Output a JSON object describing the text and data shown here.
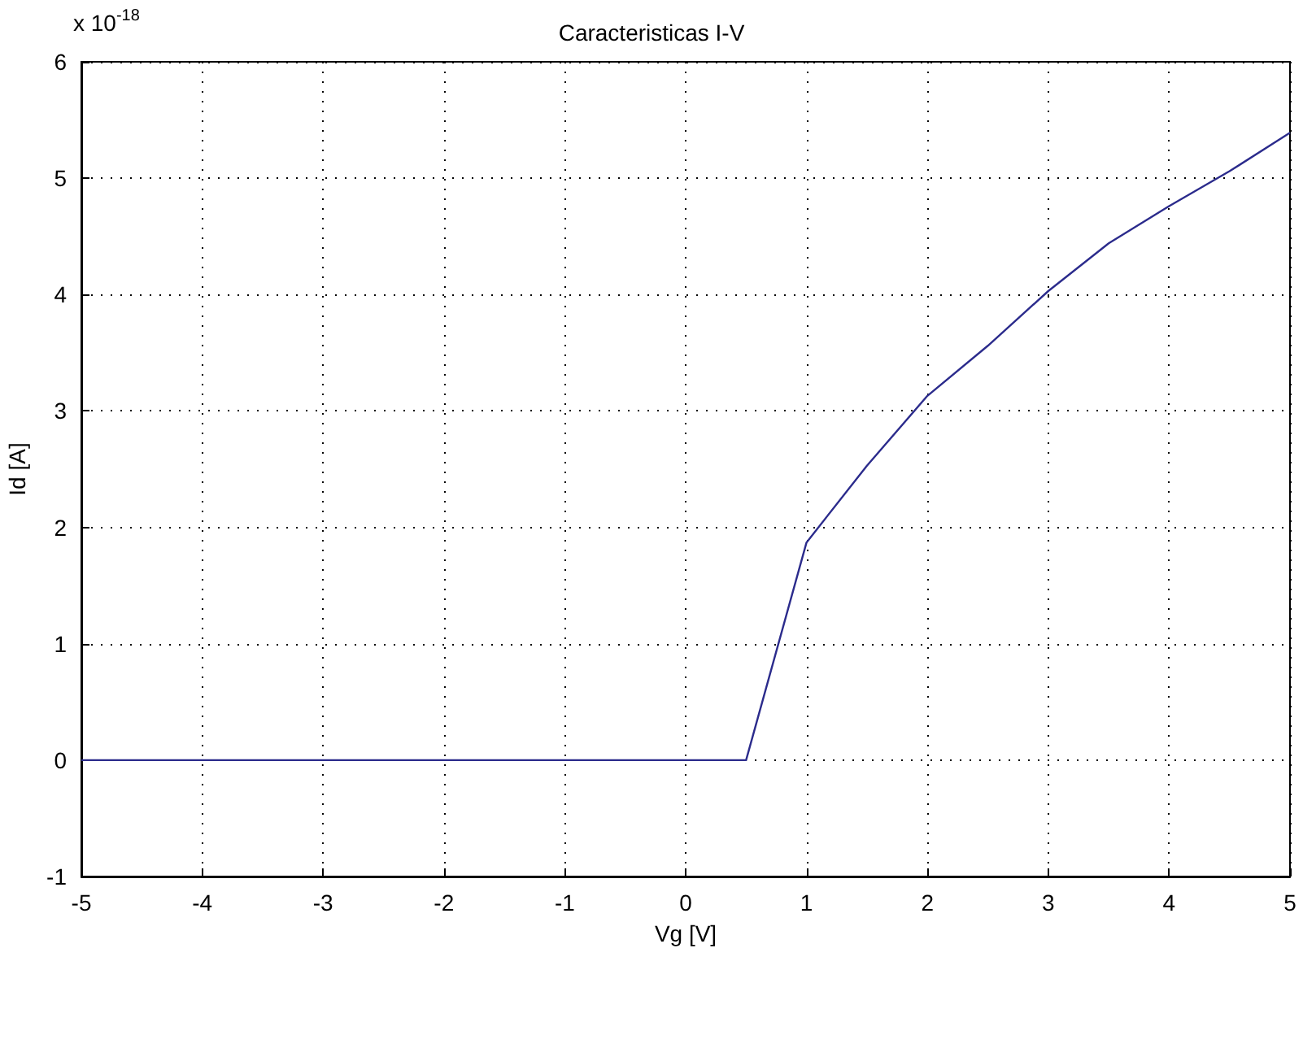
{
  "chart_data": {
    "type": "line",
    "title": "Caracteristicas I-V",
    "xlabel": "Vg [V]",
    "ylabel": "Id [A]",
    "annotations": [
      "x 10$^{-18}$"
    ],
    "series": [
      {
        "color": "#2b2b8c",
        "x": [
          -5,
          0.5,
          1,
          1.5,
          2,
          2.5,
          3,
          3.5,
          4,
          4.5,
          5
        ],
        "values": [
          0,
          0,
          1.87,
          2.53,
          3.13,
          3.56,
          4.03,
          4.44,
          4.76,
          5.06,
          5.39
        ]
      }
    ],
    "xlim": [
      -5,
      5
    ],
    "xticks": [
      -5,
      -4,
      -3,
      -2,
      -1,
      0,
      1,
      2,
      3,
      4,
      5
    ],
    "ylim": [
      -1,
      6
    ],
    "yticks": [
      -1,
      0,
      1,
      2,
      3,
      4,
      5,
      6
    ],
    "grid": true,
    "marker": "none",
    "line_style": "solid"
  }
}
